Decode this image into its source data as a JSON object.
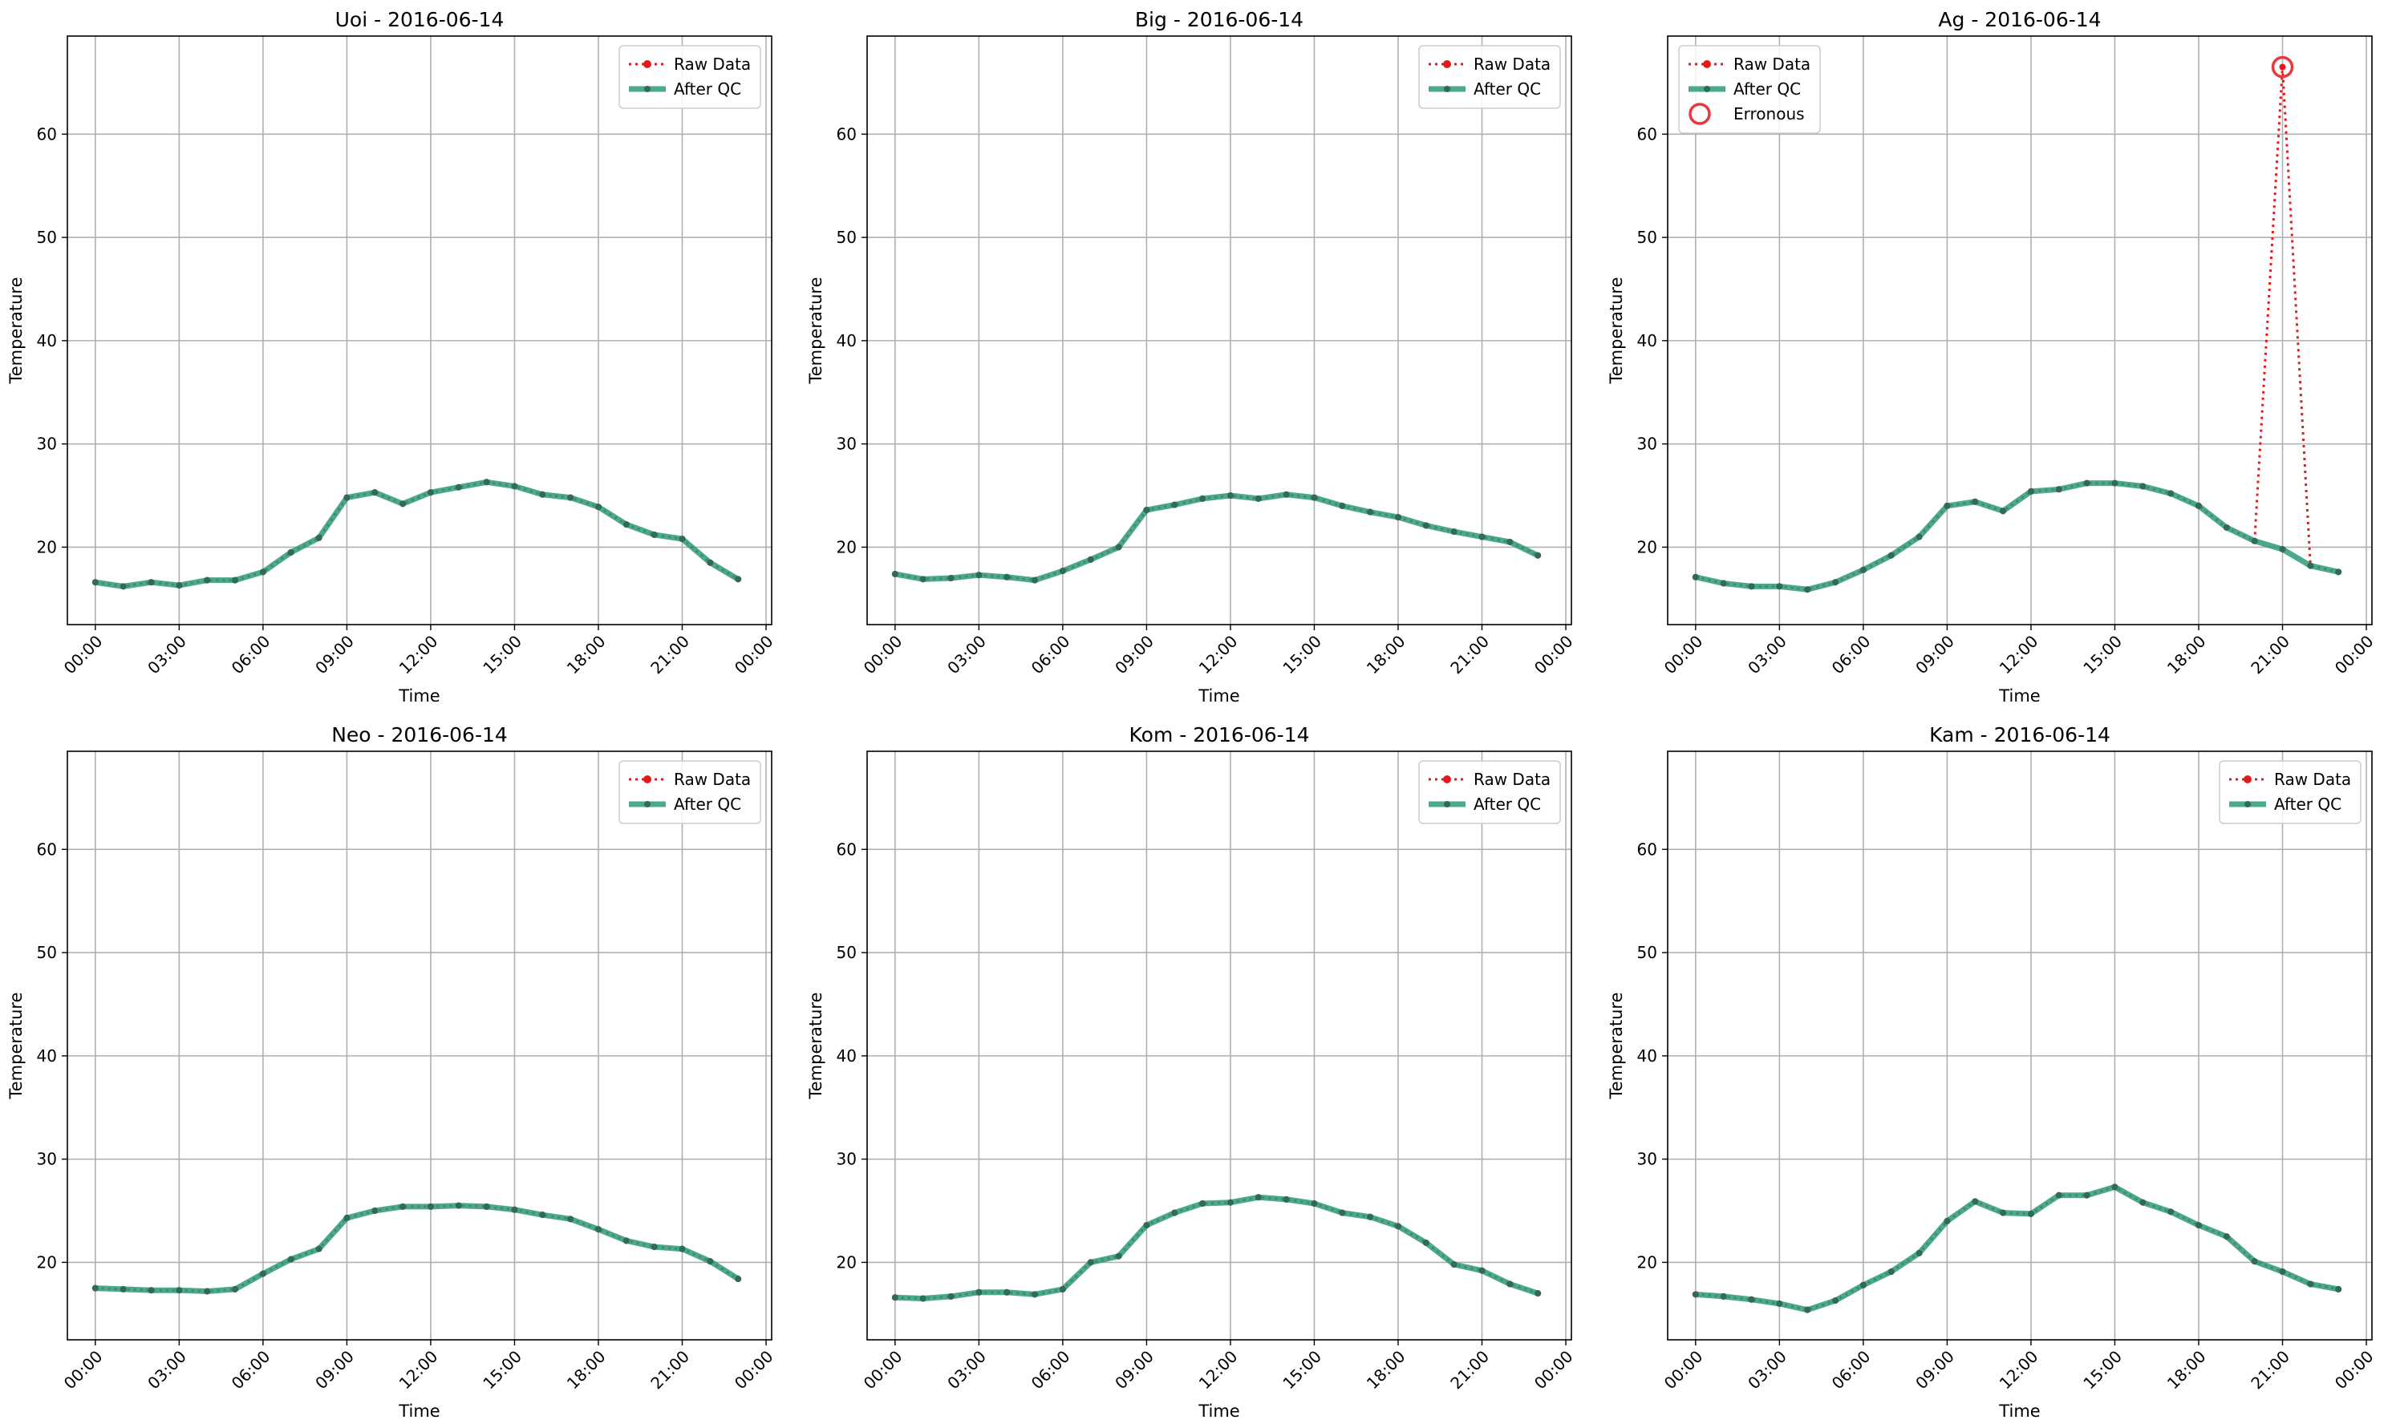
{
  "colors": {
    "raw": "#e31a1c",
    "qc": "#2b9a79",
    "qc_marker": "#2f6b58",
    "erroneous": "#e8383a",
    "grid": "#b0b0b0"
  },
  "chart_data": [
    {
      "type": "line",
      "title": "Uoi - 2016-06-14",
      "xlabel": "Time",
      "ylabel": "Temperature",
      "ylim": [
        12.5,
        69.5
      ],
      "xlim": [
        -1.0,
        24.2
      ],
      "x_ticks": [
        "00:00",
        "03:00",
        "06:00",
        "09:00",
        "12:00",
        "15:00",
        "18:00",
        "21:00",
        "00:00"
      ],
      "y_ticks": [
        20,
        30,
        40,
        50,
        60
      ],
      "legend_position": "top-right",
      "legend": [
        "Raw Data",
        "After QC"
      ],
      "grid": true,
      "x": [
        0,
        1,
        2,
        3,
        4,
        5,
        6,
        7,
        8,
        9,
        10,
        11,
        12,
        13,
        14,
        15,
        16,
        17,
        18,
        19,
        20,
        21,
        22,
        23
      ],
      "series": [
        {
          "name": "Raw Data",
          "values": [
            16.6,
            16.2,
            16.6,
            16.3,
            16.8,
            16.8,
            17.6,
            19.5,
            20.9,
            24.8,
            25.3,
            24.2,
            25.3,
            25.8,
            26.3,
            25.9,
            25.1,
            24.8,
            23.9,
            22.2,
            21.2,
            20.8,
            18.5,
            16.9
          ]
        },
        {
          "name": "After QC",
          "values": [
            16.6,
            16.2,
            16.6,
            16.3,
            16.8,
            16.8,
            17.6,
            19.5,
            20.9,
            24.8,
            25.3,
            24.2,
            25.3,
            25.8,
            26.3,
            25.9,
            25.1,
            24.8,
            23.9,
            22.2,
            21.2,
            20.8,
            18.5,
            16.9
          ]
        }
      ],
      "erroneous": []
    },
    {
      "type": "line",
      "title": "Big - 2016-06-14",
      "xlabel": "Time",
      "ylabel": "Temperature",
      "ylim": [
        12.5,
        69.5
      ],
      "xlim": [
        -1.0,
        24.2
      ],
      "x_ticks": [
        "00:00",
        "03:00",
        "06:00",
        "09:00",
        "12:00",
        "15:00",
        "18:00",
        "21:00",
        "00:00"
      ],
      "y_ticks": [
        20,
        30,
        40,
        50,
        60
      ],
      "legend_position": "top-right",
      "legend": [
        "Raw Data",
        "After QC"
      ],
      "grid": true,
      "x": [
        0,
        1,
        2,
        3,
        4,
        5,
        6,
        7,
        8,
        9,
        10,
        11,
        12,
        13,
        14,
        15,
        16,
        17,
        18,
        19,
        20,
        21,
        22,
        23
      ],
      "series": [
        {
          "name": "Raw Data",
          "values": [
            17.4,
            16.9,
            17.0,
            17.3,
            17.1,
            16.8,
            17.7,
            18.8,
            20.0,
            23.6,
            24.1,
            24.7,
            25.0,
            24.7,
            25.1,
            24.8,
            24.0,
            23.4,
            22.9,
            22.1,
            21.5,
            21.0,
            20.5,
            19.2
          ]
        },
        {
          "name": "After QC",
          "values": [
            17.4,
            16.9,
            17.0,
            17.3,
            17.1,
            16.8,
            17.7,
            18.8,
            20.0,
            23.6,
            24.1,
            24.7,
            25.0,
            24.7,
            25.1,
            24.8,
            24.0,
            23.4,
            22.9,
            22.1,
            21.5,
            21.0,
            20.5,
            19.2
          ]
        }
      ],
      "erroneous": []
    },
    {
      "type": "line",
      "title": "Ag - 2016-06-14",
      "xlabel": "Time",
      "ylabel": "Temperature",
      "ylim": [
        12.5,
        69.5
      ],
      "xlim": [
        -1.0,
        24.2
      ],
      "x_ticks": [
        "00:00",
        "03:00",
        "06:00",
        "09:00",
        "12:00",
        "15:00",
        "18:00",
        "21:00",
        "00:00"
      ],
      "y_ticks": [
        20,
        30,
        40,
        50,
        60
      ],
      "legend_position": "top-left",
      "legend": [
        "Raw Data",
        "After QC",
        "Erronous"
      ],
      "grid": true,
      "x": [
        0,
        1,
        2,
        3,
        4,
        5,
        6,
        7,
        8,
        9,
        10,
        11,
        12,
        13,
        14,
        15,
        16,
        17,
        18,
        19,
        20,
        21,
        22,
        23
      ],
      "series": [
        {
          "name": "Raw Data",
          "values": [
            17.1,
            16.5,
            16.2,
            16.2,
            15.9,
            16.6,
            17.8,
            19.2,
            21.0,
            24.0,
            24.4,
            23.5,
            25.4,
            25.6,
            26.2,
            26.2,
            25.9,
            25.2,
            24.0,
            21.9,
            20.6,
            66.5,
            18.2,
            17.6
          ]
        },
        {
          "name": "After QC",
          "values": [
            17.1,
            16.5,
            16.2,
            16.2,
            15.9,
            16.6,
            17.8,
            19.2,
            21.0,
            24.0,
            24.4,
            23.5,
            25.4,
            25.6,
            26.2,
            26.2,
            25.9,
            25.2,
            24.0,
            21.9,
            20.6,
            19.8,
            18.2,
            17.6
          ]
        }
      ],
      "erroneous": [
        {
          "x": 21,
          "y": 66.5
        }
      ]
    },
    {
      "type": "line",
      "title": "Neo - 2016-06-14",
      "xlabel": "Time",
      "ylabel": "Temperature",
      "ylim": [
        12.5,
        69.5
      ],
      "xlim": [
        -1.0,
        24.2
      ],
      "x_ticks": [
        "00:00",
        "03:00",
        "06:00",
        "09:00",
        "12:00",
        "15:00",
        "18:00",
        "21:00",
        "00:00"
      ],
      "y_ticks": [
        20,
        30,
        40,
        50,
        60
      ],
      "legend_position": "top-right",
      "legend": [
        "Raw Data",
        "After QC"
      ],
      "grid": true,
      "x": [
        0,
        1,
        2,
        3,
        4,
        5,
        6,
        7,
        8,
        9,
        10,
        11,
        12,
        13,
        14,
        15,
        16,
        17,
        18,
        19,
        20,
        21,
        22,
        23
      ],
      "series": [
        {
          "name": "Raw Data",
          "values": [
            17.5,
            17.4,
            17.3,
            17.3,
            17.2,
            17.4,
            18.9,
            20.3,
            21.3,
            24.3,
            25.0,
            25.4,
            25.4,
            25.5,
            25.4,
            25.1,
            24.6,
            24.2,
            23.2,
            22.1,
            21.5,
            21.3,
            20.1,
            18.4
          ]
        },
        {
          "name": "After QC",
          "values": [
            17.5,
            17.4,
            17.3,
            17.3,
            17.2,
            17.4,
            18.9,
            20.3,
            21.3,
            24.3,
            25.0,
            25.4,
            25.4,
            25.5,
            25.4,
            25.1,
            24.6,
            24.2,
            23.2,
            22.1,
            21.5,
            21.3,
            20.1,
            18.4
          ]
        }
      ],
      "erroneous": []
    },
    {
      "type": "line",
      "title": "Kom - 2016-06-14",
      "xlabel": "Time",
      "ylabel": "Temperature",
      "ylim": [
        12.5,
        69.5
      ],
      "xlim": [
        -1.0,
        24.2
      ],
      "x_ticks": [
        "00:00",
        "03:00",
        "06:00",
        "09:00",
        "12:00",
        "15:00",
        "18:00",
        "21:00",
        "00:00"
      ],
      "y_ticks": [
        20,
        30,
        40,
        50,
        60
      ],
      "legend_position": "top-right",
      "legend": [
        "Raw Data",
        "After QC"
      ],
      "grid": true,
      "x": [
        0,
        1,
        2,
        3,
        4,
        5,
        6,
        7,
        8,
        9,
        10,
        11,
        12,
        13,
        14,
        15,
        16,
        17,
        18,
        19,
        20,
        21,
        22,
        23
      ],
      "series": [
        {
          "name": "Raw Data",
          "values": [
            16.6,
            16.5,
            16.7,
            17.1,
            17.1,
            16.9,
            17.4,
            20.0,
            20.6,
            23.6,
            24.8,
            25.7,
            25.8,
            26.3,
            26.1,
            25.7,
            24.8,
            24.4,
            23.5,
            21.9,
            19.8,
            19.2,
            17.9,
            17.0
          ]
        },
        {
          "name": "After QC",
          "values": [
            16.6,
            16.5,
            16.7,
            17.1,
            17.1,
            16.9,
            17.4,
            20.0,
            20.6,
            23.6,
            24.8,
            25.7,
            25.8,
            26.3,
            26.1,
            25.7,
            24.8,
            24.4,
            23.5,
            21.9,
            19.8,
            19.2,
            17.9,
            17.0
          ]
        }
      ],
      "erroneous": []
    },
    {
      "type": "line",
      "title": "Kam - 2016-06-14",
      "xlabel": "Time",
      "ylabel": "Temperature",
      "ylim": [
        12.5,
        69.5
      ],
      "xlim": [
        -1.0,
        24.2
      ],
      "x_ticks": [
        "00:00",
        "03:00",
        "06:00",
        "09:00",
        "12:00",
        "15:00",
        "18:00",
        "21:00",
        "00:00"
      ],
      "y_ticks": [
        20,
        30,
        40,
        50,
        60
      ],
      "legend_position": "top-right",
      "legend": [
        "Raw Data",
        "After QC"
      ],
      "grid": true,
      "x": [
        0,
        1,
        2,
        3,
        4,
        5,
        6,
        7,
        8,
        9,
        10,
        11,
        12,
        13,
        14,
        15,
        16,
        17,
        18,
        19,
        20,
        21,
        22,
        23
      ],
      "series": [
        {
          "name": "Raw Data",
          "values": [
            16.9,
            16.7,
            16.4,
            16.0,
            15.4,
            16.3,
            17.8,
            19.1,
            20.9,
            24.0,
            25.9,
            24.8,
            24.7,
            26.5,
            26.5,
            27.3,
            25.8,
            24.9,
            23.6,
            22.5,
            20.1,
            19.1,
            17.9,
            17.4
          ]
        },
        {
          "name": "After QC",
          "values": [
            16.9,
            16.7,
            16.4,
            16.0,
            15.4,
            16.3,
            17.8,
            19.1,
            20.9,
            24.0,
            25.9,
            24.8,
            24.7,
            26.5,
            26.5,
            27.3,
            25.8,
            24.9,
            23.6,
            22.5,
            20.1,
            19.1,
            17.9,
            17.4
          ]
        }
      ],
      "erroneous": []
    }
  ]
}
